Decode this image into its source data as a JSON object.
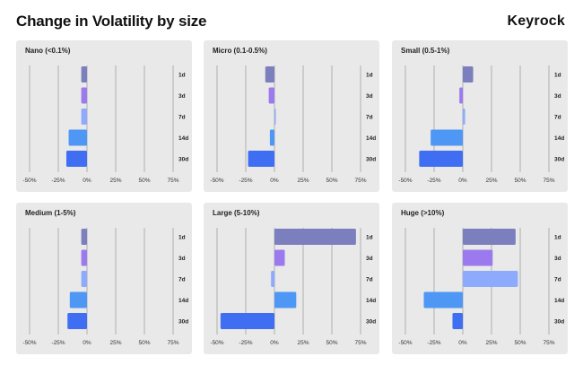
{
  "header": {
    "title": "Change in Volatility by size",
    "brand": "Keyrock"
  },
  "chart_data": {
    "type": "bar",
    "orientation": "horizontal",
    "categories": [
      "1d",
      "3d",
      "7d",
      "14d",
      "30d"
    ],
    "xticks": [
      "-50%",
      "-25%",
      "0%",
      "25%",
      "50%",
      "75%"
    ],
    "xlim": [
      -50,
      75
    ],
    "colors": [
      "#7b7fbd",
      "#9b7aee",
      "#8eaafc",
      "#4f97f5",
      "#3f6ef2"
    ],
    "panels": [
      {
        "title": "Nano (<0.1%)",
        "values": [
          -5,
          -5,
          -5,
          -16,
          -18
        ]
      },
      {
        "title": "Micro (0.1-0.5%)",
        "values": [
          -8,
          -5,
          1,
          -4,
          -23
        ]
      },
      {
        "title": "Small (0.5-1%)",
        "values": [
          9,
          -3,
          2,
          -28,
          -38
        ]
      },
      {
        "title": "Medium (1-5%)",
        "values": [
          -5,
          -5,
          -5,
          -15,
          -17
        ]
      },
      {
        "title": "Large (5-10%)",
        "values": [
          71,
          9,
          -3,
          19,
          -47
        ]
      },
      {
        "title": "Huge (>10%)",
        "values": [
          46,
          26,
          48,
          -34,
          -9
        ]
      }
    ]
  }
}
